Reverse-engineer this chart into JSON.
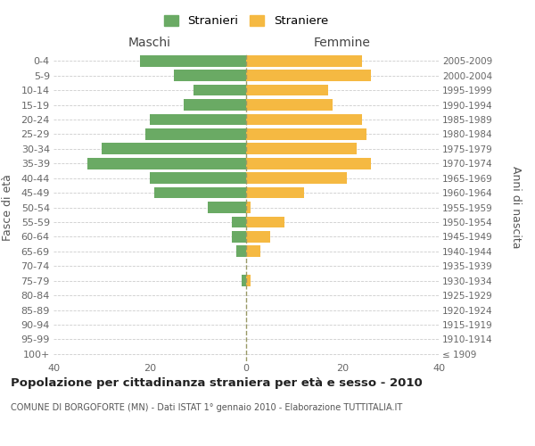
{
  "age_groups": [
    "100+",
    "95-99",
    "90-94",
    "85-89",
    "80-84",
    "75-79",
    "70-74",
    "65-69",
    "60-64",
    "55-59",
    "50-54",
    "45-49",
    "40-44",
    "35-39",
    "30-34",
    "25-29",
    "20-24",
    "15-19",
    "10-14",
    "5-9",
    "0-4"
  ],
  "birth_years": [
    "≤ 1909",
    "1910-1914",
    "1915-1919",
    "1920-1924",
    "1925-1929",
    "1930-1934",
    "1935-1939",
    "1940-1944",
    "1945-1949",
    "1950-1954",
    "1955-1959",
    "1960-1964",
    "1965-1969",
    "1970-1974",
    "1975-1979",
    "1980-1984",
    "1985-1989",
    "1990-1994",
    "1995-1999",
    "2000-2004",
    "2005-2009"
  ],
  "males": [
    0,
    0,
    0,
    0,
    0,
    1,
    0,
    2,
    3,
    3,
    8,
    19,
    20,
    33,
    30,
    21,
    20,
    13,
    11,
    15,
    22
  ],
  "females": [
    0,
    0,
    0,
    0,
    0,
    1,
    0,
    3,
    5,
    8,
    1,
    12,
    21,
    26,
    23,
    25,
    24,
    18,
    17,
    26,
    24
  ],
  "male_color": "#6aaa64",
  "female_color": "#f5b942",
  "background_color": "#ffffff",
  "grid_color": "#cccccc",
  "title": "Popolazione per cittadinanza straniera per età e sesso - 2010",
  "subtitle": "COMUNE DI BORGOFORTE (MN) - Dati ISTAT 1° gennaio 2010 - Elaborazione TUTTITALIA.IT",
  "xlabel_left": "Maschi",
  "xlabel_right": "Femmine",
  "ylabel_left": "Fasce di età",
  "ylabel_right": "Anni di nascita",
  "legend_male": "Stranieri",
  "legend_female": "Straniere",
  "xlim": 40
}
